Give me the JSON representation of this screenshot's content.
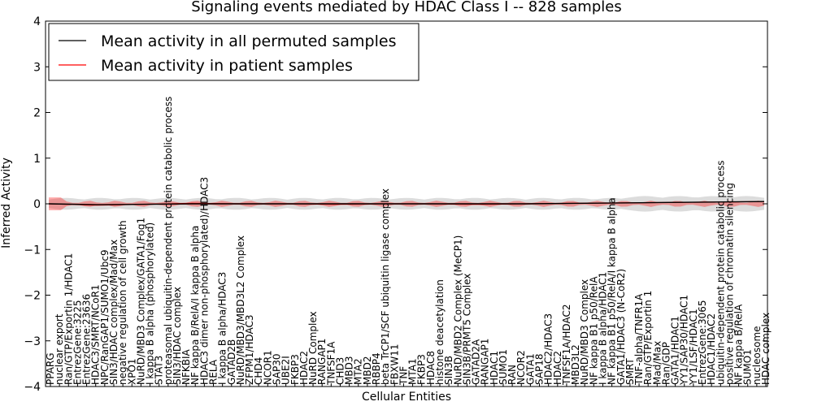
{
  "chart_data": {
    "type": "line",
    "title": "Signaling events mediated by HDAC Class I -- 828 samples",
    "xlabel": "Cellular Entities",
    "ylabel": "Inferred Activity",
    "ylim": [
      -4,
      4
    ],
    "yticks": [
      "4",
      "3",
      "2",
      "1",
      "0",
      "−1",
      "−2",
      "−3",
      "−4"
    ],
    "legend_position": "top-left",
    "series": [
      {
        "name": "Mean activity in all permuted samples",
        "color": "#000000"
      },
      {
        "name": "Mean activity in patient samples",
        "color": "#ff0000"
      }
    ],
    "categories": [
      "PPARG",
      "nuclear export",
      "Ran/GTP/Exportin 1/HDAC1",
      "EntrezGene:3225",
      "EntrezGene:23636",
      "HDAC3/SMRT/NCoR1",
      "NPC/RanGAP1/SUMO1/Ubc9",
      "SIN3/HDAC complex/Mad/Max",
      "negative regulation of cell growth",
      "XPO1",
      "NuRD/MBD3 Complex/GATA1/Fog1",
      "I kappa B alpha (phosphorylated)",
      "STAT3",
      "proteasomal ubiquitin-dependent protein catabolic process",
      "SIN3/HDAC complex",
      "NFKBIA",
      "NF kappa B/RelA/I kappa B alpha",
      "HDAC3 dimer non-phosphorylated)/HDAC3",
      "RELA",
      "I kappa B alpha/HDAC3",
      "GATAD2B",
      "NuRD/MBD3/MBD3L2 Complex",
      "ZFPM1/HDAC3",
      "CHD4",
      "NCOR1",
      "SAP30",
      "UBE2I",
      "FKBP3",
      "HDAC2",
      "NuRD Complex",
      "RANGAP1",
      "TNFSF1A",
      "CHD3",
      "MBD3",
      "MTA2",
      "MBD2",
      "RBBP4",
      "beta TrCP1/SCF ubiquitin ligase complex",
      "FBXW11",
      "TNF",
      "MTA1",
      "FKBP3",
      "HDAC8",
      "histone deacetylation",
      "SIN3B",
      "NuRD/MBD2 Complex (MeCP1)",
      "SIN3B/PRMT5 Complex",
      "GATAD2A",
      "RANGAP1",
      "HDAC1",
      "SUMO1",
      "RAN",
      "NCOR2",
      "GATA1",
      "SAP18",
      "HDAC2/HDAC3",
      "HDAC2",
      "TNFSF1A/HDAC2",
      "MBD3L2",
      "NuRD/MBD3 Complex",
      "NF kappa B1 p50/RelA",
      "I kappa B alpha/HDAC1",
      "NF kappa B1 p50/RelA/I kappa B alpha",
      "GATA1/HDAC3 (N-CoR2)",
      "SMRT",
      "TNF-alpha/TNFR1A",
      "Ran/GTP/Exportin 1",
      "Mad/Max",
      "Ran/GDP",
      "GATA1/HDAC1",
      "YY1/SAP30/HDAC1",
      "YY1/LSF/HDAC1",
      "EntrezGene:3065",
      "HDAC1/HDAC2",
      "ubiquitin-dependent protein catabolic process",
      "positive regulation of chromatin silencing",
      "NF kappa B/RelA",
      "SUMO1",
      "nucleosome",
      "HDAC complex"
    ],
    "x": [
      0,
      10,
      20,
      30,
      40,
      50,
      60,
      70,
      80,
      90,
      100,
      110,
      120,
      130,
      140,
      150
    ],
    "patient_mean": [
      0.0,
      -0.03,
      -0.01,
      0.01,
      0.0,
      0.0,
      -0.01,
      0.0,
      0.0,
      -0.01,
      0.0,
      0.01,
      0.02,
      0.03,
      0.04,
      0.05
    ],
    "permuted_mean": [
      0.0,
      -0.02,
      -0.01,
      0.0,
      0.0,
      0.0,
      0.0,
      0.0,
      0.0,
      0.0,
      0.0,
      0.01,
      0.02,
      0.03,
      0.04,
      0.05
    ]
  }
}
